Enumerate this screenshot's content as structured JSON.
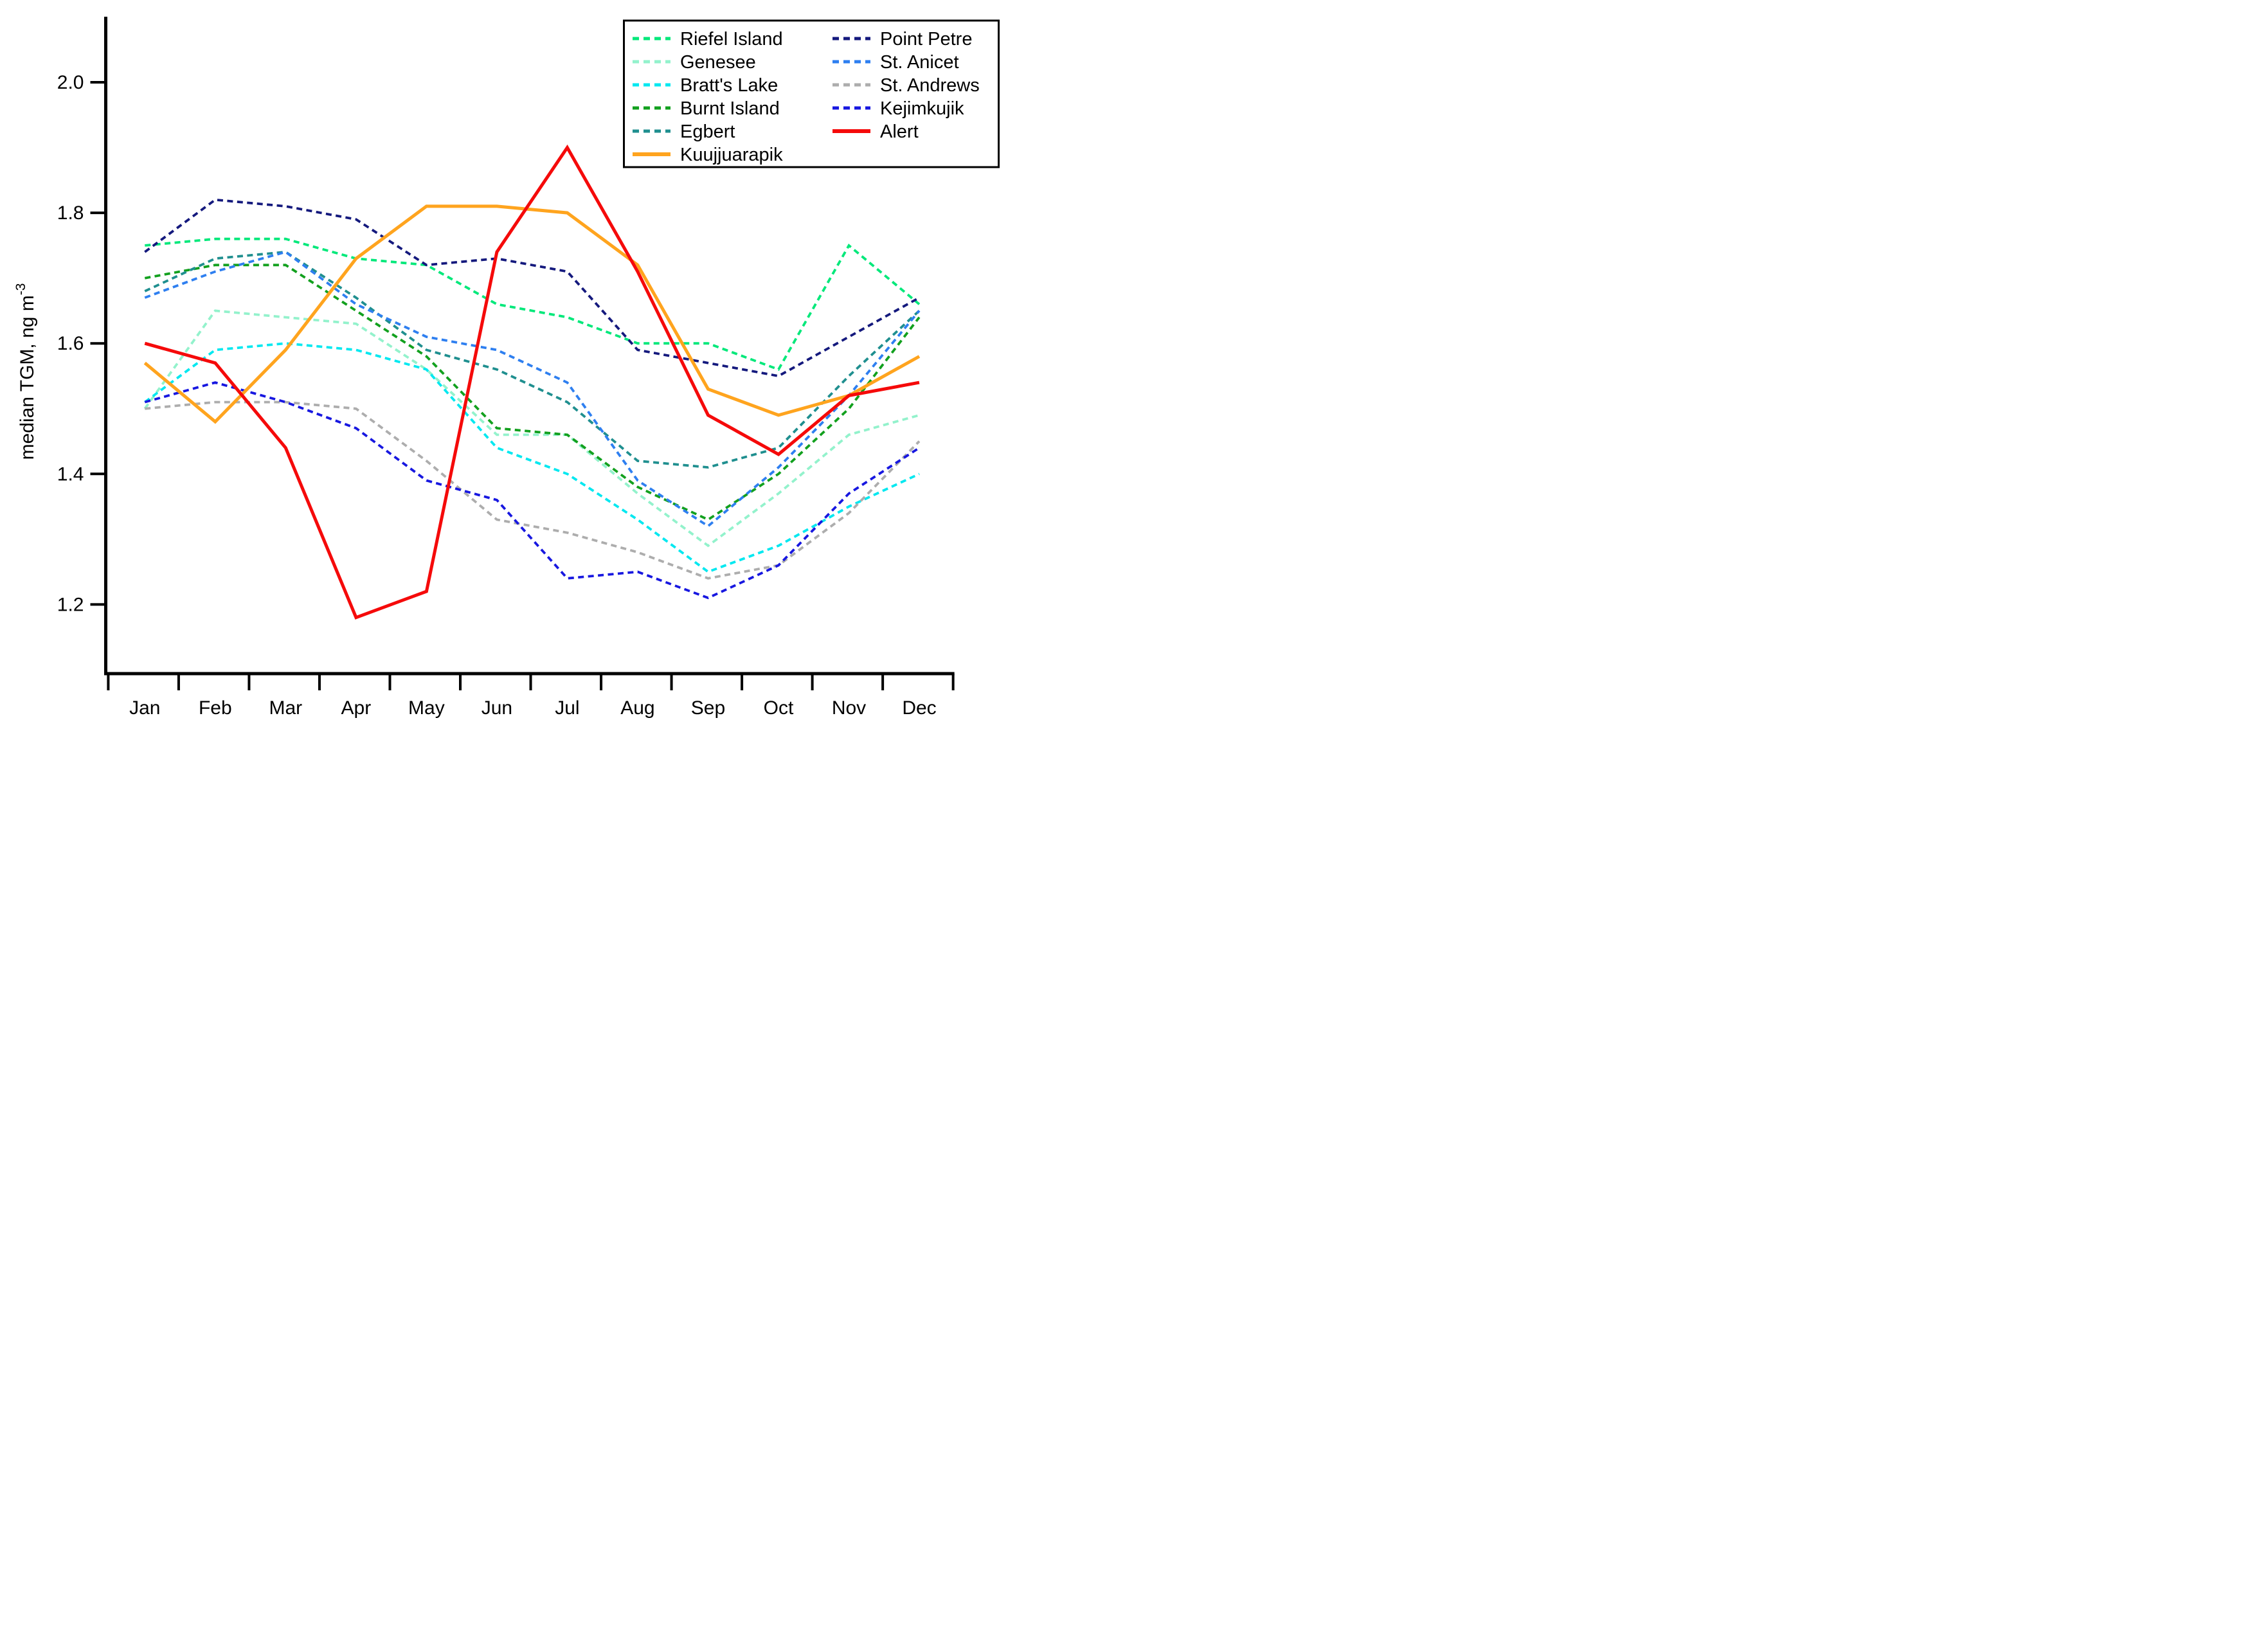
{
  "chart_data": {
    "type": "line",
    "title": "",
    "xlabel": "",
    "ylabel": "median TGM, ng m",
    "ylabel_superscript": "-3",
    "x_categories": [
      "Jan",
      "Feb",
      "Mar",
      "Apr",
      "May",
      "Jun",
      "Jul",
      "Aug",
      "Sep",
      "Oct",
      "Nov",
      "Dec"
    ],
    "y_ticks": [
      "2.0",
      "1.8",
      "1.6",
      "1.4",
      "1.2"
    ],
    "y_tick_values": [
      2.0,
      1.8,
      1.6,
      1.4,
      1.2
    ],
    "ylim": [
      1.08,
      2.105
    ],
    "grid": false,
    "legend_position": "top-right",
    "axis_color": "#000000",
    "background_color": "#ffffff",
    "series": [
      {
        "name": "Riefel Island",
        "color": "#00E87A",
        "style": "dotted",
        "values": [
          1.75,
          1.76,
          1.76,
          1.73,
          1.72,
          1.66,
          1.64,
          1.6,
          1.6,
          1.56,
          1.75,
          1.66
        ]
      },
      {
        "name": "Genesee",
        "color": "#93F2CC",
        "style": "dotted",
        "values": [
          1.5,
          1.65,
          1.64,
          1.63,
          1.56,
          1.46,
          1.46,
          1.37,
          1.29,
          1.37,
          1.46,
          1.49
        ]
      },
      {
        "name": "Bratt's Lake",
        "color": "#00E8F0",
        "style": "dotted",
        "values": [
          1.51,
          1.59,
          1.6,
          1.59,
          1.56,
          1.44,
          1.4,
          1.33,
          1.25,
          1.29,
          1.35,
          1.4
        ]
      },
      {
        "name": "Burnt Island",
        "color": "#12A01E",
        "style": "dotted",
        "values": [
          1.7,
          1.72,
          1.72,
          1.65,
          1.58,
          1.47,
          1.46,
          1.38,
          1.33,
          1.4,
          1.5,
          1.64
        ]
      },
      {
        "name": "Egbert",
        "color": "#1F8F8F",
        "style": "dotted",
        "values": [
          1.68,
          1.73,
          1.74,
          1.67,
          1.59,
          1.56,
          1.51,
          1.42,
          1.41,
          1.44,
          1.55,
          1.65
        ]
      },
      {
        "name": "Kuujjuarapik",
        "color": "#FFA41E",
        "style": "solid",
        "values": [
          1.57,
          1.48,
          1.59,
          1.73,
          1.81,
          1.81,
          1.8,
          1.72,
          1.53,
          1.49,
          1.52,
          1.58
        ]
      },
      {
        "name": "Point Petre",
        "color": "#14197D",
        "style": "dotted",
        "values": [
          1.74,
          1.82,
          1.81,
          1.79,
          1.72,
          1.73,
          1.71,
          1.59,
          1.57,
          1.55,
          1.61,
          1.67
        ]
      },
      {
        "name": "St. Anicet",
        "color": "#2E7FF0",
        "style": "dotted",
        "values": [
          1.67,
          1.71,
          1.74,
          1.66,
          1.61,
          1.59,
          1.54,
          1.39,
          1.32,
          1.41,
          1.52,
          1.65
        ]
      },
      {
        "name": "St. Andrews",
        "color": "#ADADAD",
        "style": "dotted",
        "values": [
          1.5,
          1.51,
          1.51,
          1.5,
          1.42,
          1.33,
          1.31,
          1.28,
          1.24,
          1.26,
          1.34,
          1.45
        ]
      },
      {
        "name": "Kejimkujik",
        "color": "#1717E0",
        "style": "dotted",
        "values": [
          1.51,
          1.54,
          1.51,
          1.47,
          1.39,
          1.36,
          1.24,
          1.25,
          1.21,
          1.26,
          1.37,
          1.44
        ]
      },
      {
        "name": "Alert",
        "color": "#F50A0A",
        "style": "solid",
        "values": [
          1.6,
          1.57,
          1.44,
          1.18,
          1.22,
          1.74,
          1.9,
          1.71,
          1.49,
          1.43,
          1.52,
          1.54
        ]
      }
    ],
    "legend_columns": [
      [
        "Riefel Island",
        "Genesee",
        "Bratt's Lake",
        "Burnt Island",
        "Egbert",
        "Kuujjuarapik"
      ],
      [
        "Point Petre",
        "St. Anicet",
        "St. Andrews",
        "Kejimkujik",
        "Alert"
      ]
    ]
  }
}
